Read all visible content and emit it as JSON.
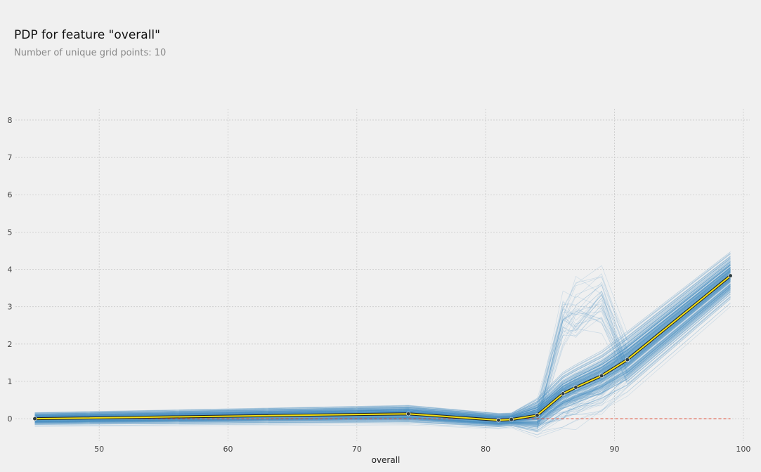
{
  "chart_data": {
    "type": "line",
    "title": "PDP for feature \"overall\"",
    "subtitle": "Number of unique grid points: 10",
    "xlabel": "overall",
    "ylabel": "",
    "xlim": [
      43.5,
      100.5
    ],
    "ylim": [
      -0.6,
      8.3
    ],
    "x_ticks": [
      50,
      60,
      70,
      80,
      90,
      100
    ],
    "y_ticks": [
      0,
      1,
      2,
      3,
      4,
      5,
      6,
      7,
      8
    ],
    "grid": true,
    "series": [
      {
        "values_x": [
          45,
          74,
          81,
          82,
          84,
          86,
          87,
          89,
          91,
          99
        ],
        "values_y": [
          0.0,
          0.13,
          -0.04,
          -0.02,
          0.09,
          0.67,
          0.84,
          1.15,
          1.58,
          3.83
        ],
        "color": "#f5e216"
      }
    ],
    "baseline": {
      "y": 0,
      "x_start": 45,
      "x_end": 99,
      "color": "#e24a33"
    },
    "ice_lines": {
      "color": "#4c92c3"
    }
  }
}
